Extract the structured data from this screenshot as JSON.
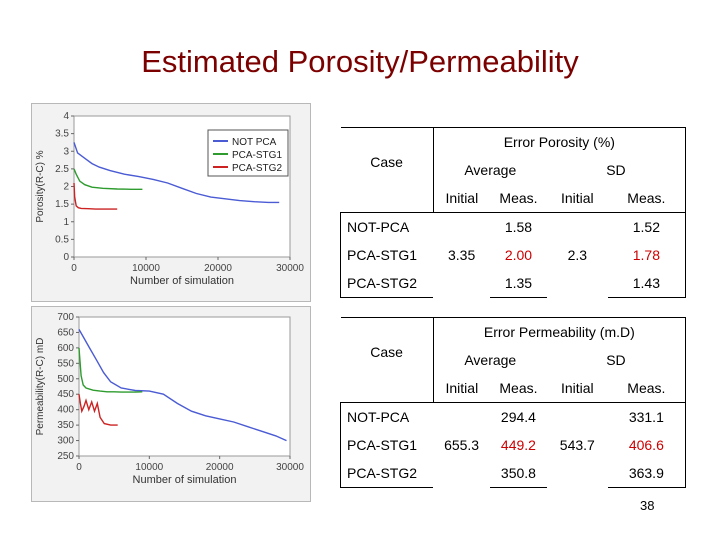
{
  "slide": {
    "title": "Estimated Porosity/Permeability",
    "page_number": "38"
  },
  "colors": {
    "title": "#7b0000",
    "not_pca": "#4a5bd4",
    "pca_stg1": "#2d9b2d",
    "pca_stg2": "#cc2222",
    "red_values": "#cc0000"
  },
  "porosity_table": {
    "header": "Error Porosity (%)",
    "case_label": "Case",
    "average_label": "Average",
    "sd_label": "SD",
    "initial_label": "Initial",
    "meas_label": "Meas.",
    "avg_initial": "3.35",
    "sd_initial": "2.3",
    "rows": [
      {
        "case": "NOT-PCA",
        "avg_meas": "1.58",
        "sd_meas": "1.52"
      },
      {
        "case": "PCA-STG1",
        "avg_meas": "2.00",
        "sd_meas": "1.78"
      },
      {
        "case": "PCA-STG2",
        "avg_meas": "1.35",
        "sd_meas": "1.43"
      }
    ]
  },
  "permeability_table": {
    "header": "Error Permeability (m.D)",
    "case_label": "Case",
    "average_label": "Average",
    "sd_label": "SD",
    "initial_label": "Initial",
    "meas_label": "Meas.",
    "avg_initial": "655.3",
    "sd_initial": "543.7",
    "rows": [
      {
        "case": "NOT-PCA",
        "avg_meas": "294.4",
        "sd_meas": "331.1"
      },
      {
        "case": "PCA-STG1",
        "avg_meas": "449.2",
        "sd_meas": "406.6"
      },
      {
        "case": "PCA-STG2",
        "avg_meas": "350.8",
        "sd_meas": "363.9"
      }
    ]
  },
  "chart_data": [
    {
      "type": "line",
      "xlabel": "Number of simulation",
      "ylabel": "Porosity(R-C) %",
      "xlim": [
        0,
        30000
      ],
      "ylim": [
        0,
        4
      ],
      "xticks": [
        "0",
        "10000",
        "20000",
        "30000"
      ],
      "yticks": [
        "0",
        "0.5",
        "1",
        "1.5",
        "2",
        "2.5",
        "3",
        "3.5",
        "4"
      ],
      "legend": [
        "NOT PCA",
        "PCA-STG1",
        "PCA-STG2"
      ],
      "legend_position": "top-right",
      "series": [
        {
          "name": "NOT PCA",
          "x": [
            0,
            500,
            1500,
            2500,
            3500,
            5000,
            7000,
            9000,
            11000,
            13000,
            15000,
            17000,
            19000,
            21000,
            23000,
            25000,
            27000,
            28500
          ],
          "y": [
            3.25,
            2.95,
            2.8,
            2.65,
            2.55,
            2.45,
            2.35,
            2.28,
            2.2,
            2.1,
            1.95,
            1.8,
            1.7,
            1.65,
            1.6,
            1.57,
            1.55,
            1.55
          ]
        },
        {
          "name": "PCA-STG1",
          "x": [
            0,
            300,
            800,
            1500,
            2500,
            4000,
            6000,
            8000,
            9500
          ],
          "y": [
            2.5,
            2.35,
            2.15,
            2.05,
            1.98,
            1.95,
            1.93,
            1.92,
            1.92
          ]
        },
        {
          "name": "PCA-STG2",
          "x": [
            0,
            100,
            300,
            600,
            1000,
            2000,
            3000,
            4000,
            5000,
            6000
          ],
          "y": [
            2.1,
            1.7,
            1.45,
            1.4,
            1.38,
            1.37,
            1.36,
            1.36,
            1.36,
            1.36
          ]
        }
      ]
    },
    {
      "type": "line",
      "xlabel": "Number of simulation",
      "ylabel": "Permeability(R-C) mD",
      "xlim": [
        0,
        30000
      ],
      "ylim": [
        250,
        700
      ],
      "xticks": [
        "0",
        "10000",
        "20000",
        "30000"
      ],
      "yticks": [
        "250",
        "300",
        "350",
        "400",
        "450",
        "500",
        "550",
        "600",
        "650",
        "700"
      ],
      "series": [
        {
          "name": "NOT PCA",
          "x": [
            0,
            500,
            1500,
            2500,
            3500,
            4500,
            6000,
            8000,
            10000,
            12000,
            14000,
            16000,
            18000,
            20000,
            22000,
            24000,
            26000,
            28000,
            29500
          ],
          "y": [
            660,
            640,
            600,
            560,
            520,
            490,
            470,
            462,
            460,
            450,
            420,
            395,
            380,
            370,
            360,
            345,
            330,
            315,
            300
          ]
        },
        {
          "name": "PCA-STG1",
          "x": [
            0,
            300,
            600,
            1000,
            2000,
            3000,
            4000,
            5000,
            6000,
            7000,
            8000,
            9000
          ],
          "y": [
            600,
            510,
            480,
            470,
            463,
            460,
            458,
            458,
            457,
            457,
            457,
            458
          ]
        },
        {
          "name": "PCA-STG2",
          "x": [
            0,
            200,
            400,
            700,
            1000,
            1400,
            1800,
            2200,
            2600,
            3000,
            3600,
            4500,
            5500
          ],
          "y": [
            450,
            420,
            395,
            410,
            430,
            400,
            425,
            395,
            420,
            375,
            355,
            350,
            350
          ]
        }
      ]
    }
  ]
}
